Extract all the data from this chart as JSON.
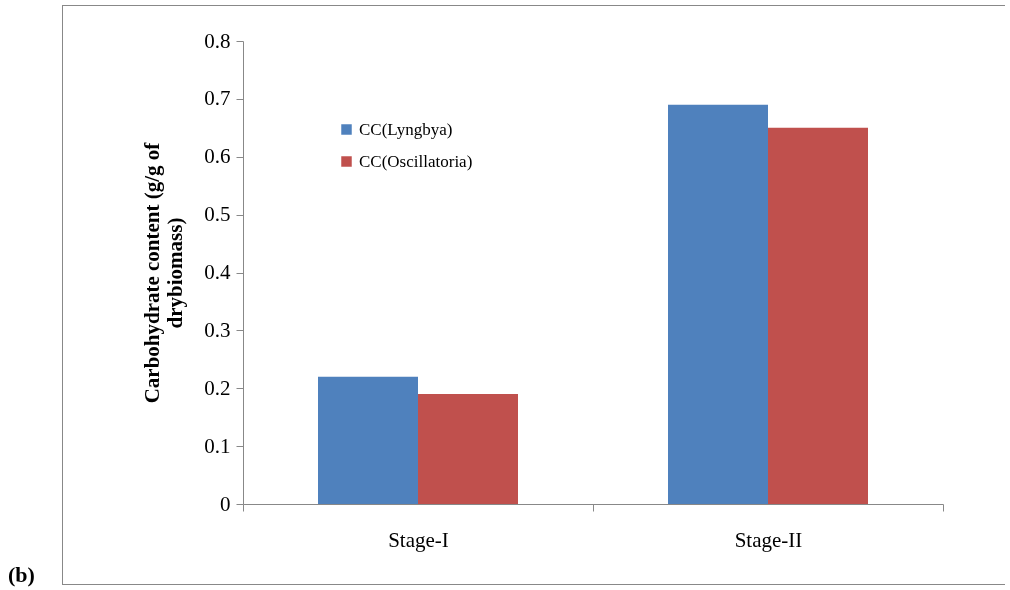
{
  "chart_data": {
    "type": "bar",
    "ylabel": "Carbohydrate content (g/g of drybiomass)",
    "categories": [
      "Stage-I",
      "Stage-II"
    ],
    "series": [
      {
        "name": "CC(Lyngbya)",
        "color": "#4f81bd",
        "values": [
          0.22,
          0.69
        ]
      },
      {
        "name": "CC(Oscillatoria)",
        "color": "#c0504d",
        "values": [
          0.19,
          0.65
        ]
      }
    ],
    "ylim": [
      0,
      0.8
    ],
    "yticks": [
      0,
      0.1,
      0.2,
      0.3,
      0.4,
      0.5,
      0.6,
      0.7,
      0.8
    ],
    "grid": false,
    "legend": "top left",
    "annotations": [
      "(b)"
    ]
  }
}
